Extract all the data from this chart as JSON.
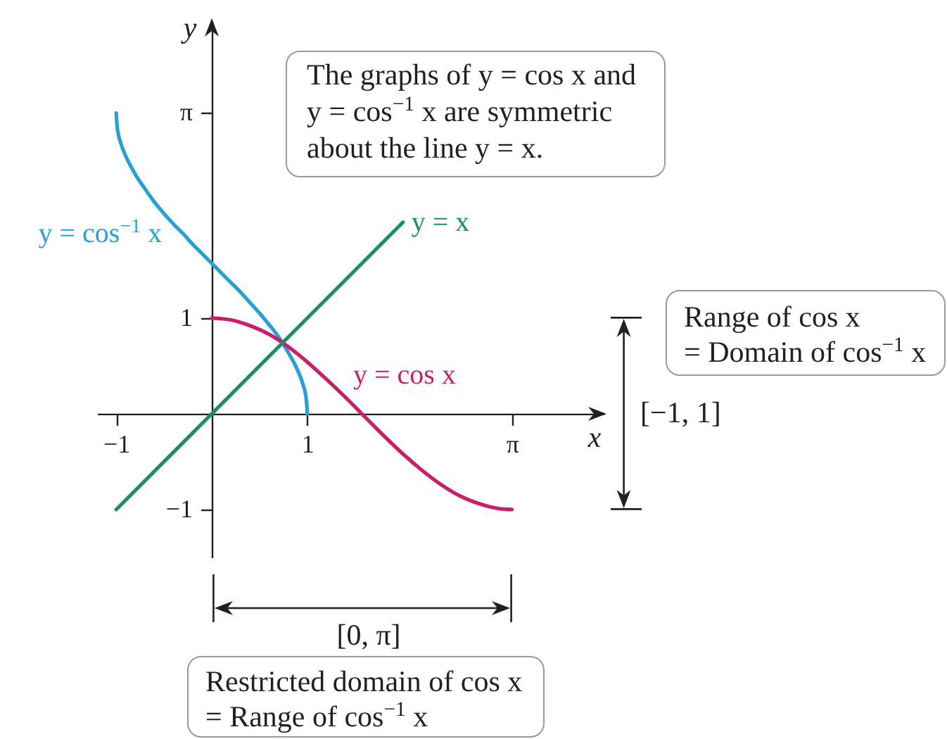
{
  "chart_data": {
    "type": "line",
    "xlabel": "x",
    "ylabel": "y",
    "xlim": [
      -1.2,
      4.1
    ],
    "ylim": [
      -1.5,
      4.1
    ],
    "xticks": [
      -1,
      1,
      {
        "value": 3.1416,
        "label": "π"
      }
    ],
    "yticks": [
      -1,
      1,
      {
        "value": 3.1416,
        "label": "π"
      }
    ],
    "series": [
      {
        "name": "y = cos$^{−1}$ x",
        "color": "#2a9fd6",
        "x": [
          -1,
          -0.99,
          -0.95,
          -0.9,
          -0.8,
          -0.7,
          -0.6,
          -0.5,
          -0.4,
          -0.3,
          -0.2,
          -0.1,
          0,
          0.1,
          0.2,
          0.3,
          0.4,
          0.5,
          0.6,
          0.7,
          0.8,
          0.9,
          0.95,
          0.99,
          1
        ],
        "values": [
          3.14,
          3.0,
          2.82,
          2.69,
          2.5,
          2.35,
          2.21,
          2.09,
          1.98,
          1.88,
          1.77,
          1.67,
          1.57,
          1.47,
          1.37,
          1.27,
          1.16,
          1.05,
          0.93,
          0.8,
          0.64,
          0.45,
          0.32,
          0.14,
          0
        ]
      },
      {
        "name": "y = cos x",
        "color": "#c81e6c",
        "x": [
          0,
          0.2,
          0.4,
          0.6,
          0.8,
          1,
          1.2,
          1.4,
          1.6,
          1.8,
          2,
          2.2,
          2.4,
          2.6,
          2.8,
          3,
          3.14
        ],
        "values": [
          1,
          0.98,
          0.92,
          0.83,
          0.7,
          0.54,
          0.36,
          0.17,
          -0.03,
          -0.23,
          -0.42,
          -0.59,
          -0.74,
          -0.86,
          -0.94,
          -0.99,
          -1
        ]
      },
      {
        "name": "y = x",
        "color": "#1a8f6a",
        "x": [
          -1,
          2
        ],
        "values": [
          -1,
          2
        ]
      }
    ],
    "annotations": [
      "The graphs of y = cos x and\ny = cos$^{−1}$ x are symmetric\nabout the line y = x.",
      "Range of cos x\n= Domain of cos$^{−1}$ x",
      "[−1, 1]",
      "[0, π]",
      "Restricted domain of cos x\n= Range of cos$^{−1}$ x"
    ]
  }
}
